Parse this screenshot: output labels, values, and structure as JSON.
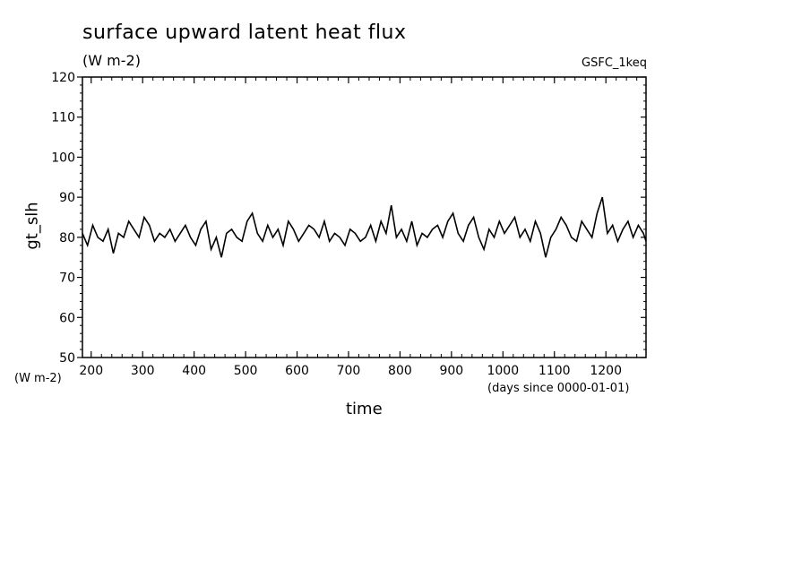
{
  "chart_data": {
    "type": "line",
    "title": "surface upward latent heat flux",
    "units": "(W m-2)",
    "source_label": "GSFC_1keq",
    "xlabel": "time",
    "ylabel": "gt_slh",
    "xunit": "(days since 0000-01-01)",
    "yunit": "(W m-2)",
    "xlim": [
      183,
      1278
    ],
    "ylim": [
      50,
      120
    ],
    "xticks": [
      "200",
      "300",
      "400",
      "500",
      "600",
      "700",
      "800",
      "900",
      "1000",
      "1100",
      "1200"
    ],
    "yticks": [
      "50",
      "60",
      "70",
      "80",
      "90",
      "100",
      "110",
      "120"
    ],
    "grid": false,
    "series": [
      {
        "color": "#000000",
        "x": [
          183,
          193,
          203,
          213,
          223,
          233,
          243,
          253,
          263,
          273,
          283,
          293,
          303,
          313,
          323,
          333,
          343,
          353,
          363,
          373,
          383,
          393,
          403,
          413,
          423,
          433,
          443,
          453,
          463,
          473,
          483,
          493,
          503,
          513,
          523,
          533,
          543,
          553,
          563,
          573,
          583,
          593,
          603,
          613,
          623,
          633,
          643,
          653,
          663,
          673,
          683,
          693,
          703,
          713,
          723,
          733,
          743,
          753,
          763,
          773,
          783,
          793,
          803,
          813,
          823,
          833,
          843,
          853,
          863,
          873,
          883,
          893,
          903,
          913,
          923,
          933,
          943,
          953,
          963,
          973,
          983,
          993,
          1003,
          1013,
          1023,
          1033,
          1043,
          1053,
          1063,
          1073,
          1083,
          1093,
          1103,
          1113,
          1123,
          1133,
          1143,
          1153,
          1163,
          1173,
          1183,
          1193,
          1203,
          1213,
          1223,
          1233,
          1243,
          1253,
          1263,
          1273,
          1278
        ],
        "y": [
          81,
          78,
          83,
          80,
          79,
          82,
          76,
          81,
          80,
          84,
          82,
          80,
          85,
          83,
          79,
          81,
          80,
          82,
          79,
          81,
          83,
          80,
          78,
          82,
          84,
          77,
          80,
          75,
          81,
          82,
          80,
          79,
          84,
          86,
          81,
          79,
          83,
          80,
          82,
          78,
          84,
          82,
          79,
          81,
          83,
          82,
          80,
          84,
          79,
          81,
          80,
          78,
          82,
          81,
          79,
          80,
          83,
          79,
          84,
          81,
          88,
          80,
          82,
          79,
          84,
          78,
          81,
          80,
          82,
          83,
          80,
          84,
          86,
          81,
          79,
          83,
          85,
          80,
          77,
          82,
          80,
          84,
          81,
          83,
          85,
          80,
          82,
          79,
          84,
          81,
          75,
          80,
          82,
          85,
          83,
          80,
          79,
          84,
          82,
          80,
          86,
          90,
          81,
          83,
          79,
          82,
          84,
          80,
          83,
          81,
          79
        ]
      }
    ]
  }
}
